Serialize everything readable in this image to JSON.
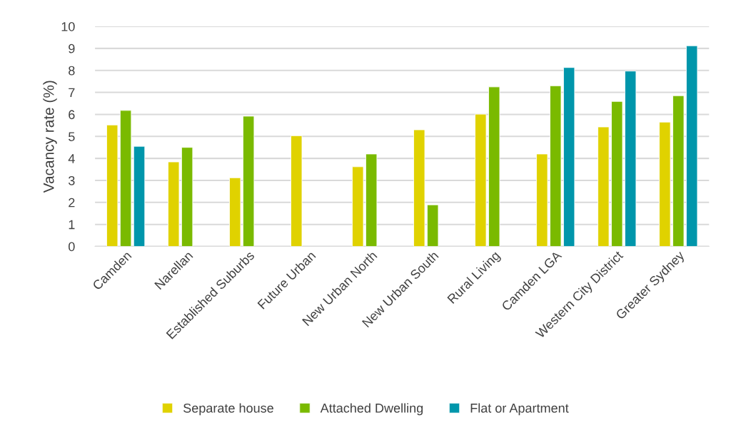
{
  "chart_data": {
    "type": "bar",
    "ylabel": "Vacancy rate (%)",
    "categories": [
      "Camden",
      "Narellan",
      "Established Suburbs",
      "Future Urban",
      "New Urban North",
      "New Urban South",
      "Rural Living",
      "Camden LGA",
      "Western City District",
      "Greater Sydney"
    ],
    "series": [
      {
        "name": "Separate house",
        "color": "#e0d200",
        "values": [
          5.52,
          3.84,
          3.12,
          5.03,
          3.62,
          5.3,
          6.01,
          4.2,
          5.43,
          5.65
        ]
      },
      {
        "name": "Attached Dwelling",
        "color": "#7aba00",
        "values": [
          6.18,
          4.5,
          5.92,
          null,
          4.2,
          1.89,
          7.25,
          7.3,
          6.59,
          6.85
        ]
      },
      {
        "name": "Flat or Apartment",
        "color": "#0096ab",
        "values": [
          4.55,
          null,
          null,
          null,
          null,
          null,
          null,
          8.13,
          7.97,
          9.12
        ]
      }
    ],
    "ylim": [
      0,
      10
    ],
    "yticks": [
      0,
      1,
      2,
      3,
      4,
      5,
      6,
      7,
      8,
      9,
      10
    ],
    "grid": "y",
    "legend": "bottom"
  }
}
